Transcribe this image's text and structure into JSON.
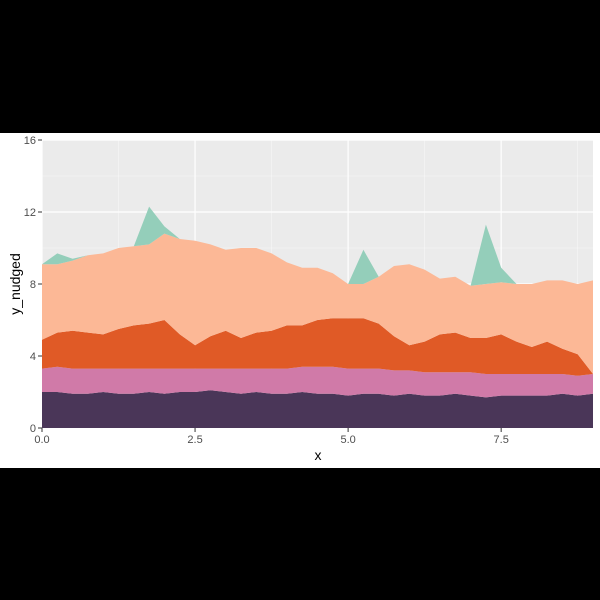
{
  "chart_data": {
    "type": "area",
    "stacked": true,
    "xlabel": "x",
    "ylabel": "y_nudged",
    "xlim": [
      0,
      9
    ],
    "ylim": [
      0,
      16
    ],
    "x_ticks": [
      0,
      2.5,
      5,
      7.5
    ],
    "x_tick_labels": [
      "0.0",
      "2.5",
      "5.0",
      "7.5"
    ],
    "y_ticks": [
      0,
      4,
      8,
      12,
      16
    ],
    "y_tick_labels": [
      "0",
      "4",
      "8",
      "12",
      "16"
    ],
    "grid": true,
    "legend": "none",
    "x": [
      0,
      0.25,
      0.5,
      0.75,
      1,
      1.25,
      1.5,
      1.75,
      2,
      2.25,
      2.5,
      2.75,
      3,
      3.25,
      3.5,
      3.75,
      4,
      4.25,
      4.5,
      4.75,
      5,
      5.25,
      5.5,
      5.75,
      6,
      6.25,
      6.5,
      6.75,
      7,
      7.25,
      7.5,
      7.75,
      8,
      8.25,
      8.5,
      8.75,
      9
    ],
    "series": [
      {
        "color": "#4a3658",
        "values": [
          2.0,
          2.0,
          1.9,
          1.9,
          2.0,
          1.9,
          1.9,
          2.0,
          1.9,
          2.0,
          2.0,
          2.1,
          2.0,
          1.9,
          2.0,
          1.9,
          1.9,
          2.0,
          1.9,
          1.9,
          1.8,
          1.9,
          1.9,
          1.8,
          1.9,
          1.8,
          1.8,
          1.9,
          1.8,
          1.7,
          1.8,
          1.8,
          1.8,
          1.8,
          1.9,
          1.8,
          1.9
        ]
      },
      {
        "color": "#d07aa8",
        "values": [
          1.3,
          1.4,
          1.4,
          1.4,
          1.3,
          1.4,
          1.4,
          1.3,
          1.4,
          1.3,
          1.3,
          1.2,
          1.3,
          1.4,
          1.3,
          1.4,
          1.4,
          1.4,
          1.5,
          1.5,
          1.5,
          1.4,
          1.4,
          1.4,
          1.3,
          1.3,
          1.3,
          1.2,
          1.3,
          1.3,
          1.2,
          1.2,
          1.2,
          1.2,
          1.1,
          1.1,
          1.1
        ]
      },
      {
        "color": "#e05a26",
        "values": [
          1.6,
          1.9,
          2.1,
          2.0,
          1.9,
          2.2,
          2.4,
          2.5,
          2.7,
          1.9,
          1.3,
          1.8,
          2.1,
          1.7,
          2.0,
          2.1,
          2.4,
          2.3,
          2.6,
          2.7,
          2.8,
          2.8,
          2.5,
          1.9,
          1.4,
          1.7,
          2.1,
          2.2,
          1.9,
          2.0,
          2.2,
          1.8,
          1.5,
          1.8,
          1.4,
          1.2,
          0.0
        ]
      },
      {
        "color": "#fcb896",
        "values": [
          4.2,
          3.8,
          3.9,
          4.3,
          4.5,
          4.5,
          4.4,
          4.4,
          4.8,
          5.3,
          5.8,
          5.1,
          4.5,
          5.0,
          4.7,
          4.3,
          3.5,
          3.2,
          2.9,
          2.5,
          1.9,
          1.9,
          2.6,
          3.9,
          4.5,
          4.0,
          3.1,
          3.1,
          2.9,
          3.0,
          2.9,
          3.2,
          3.5,
          3.4,
          3.8,
          3.9,
          5.2
        ]
      },
      {
        "color": "#94ceba",
        "values": [
          0.0,
          0.6,
          0.1,
          0.0,
          0.0,
          0.0,
          0.0,
          2.1,
          0.4,
          0.0,
          0.0,
          0.0,
          0.0,
          0.0,
          0.0,
          0.0,
          0.0,
          0.0,
          0.0,
          0.0,
          0.0,
          1.9,
          0.0,
          0.0,
          0.0,
          0.0,
          0.0,
          0.0,
          0.0,
          3.3,
          0.8,
          0.0,
          0.0,
          0.0,
          0.0,
          0.0,
          0.0
        ]
      }
    ]
  }
}
